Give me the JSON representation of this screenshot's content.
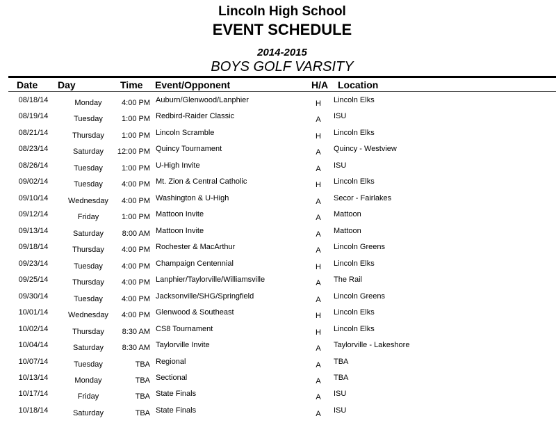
{
  "header": {
    "school": "Lincoln High School",
    "title": "EVENT SCHEDULE",
    "season": "2014-2015",
    "team": "BOYS GOLF VARSITY"
  },
  "columns": {
    "date": "Date",
    "day": "Day",
    "time": "Time",
    "event": "Event/Opponent",
    "ha": "H/A",
    "location": "Location"
  },
  "rows": [
    {
      "date": "08/18/14",
      "day": "Monday",
      "time": "4:00 PM",
      "event": "Auburn/Glenwood/Lanphier",
      "ha": "H",
      "location": "Lincoln Elks"
    },
    {
      "date": "08/19/14",
      "day": "Tuesday",
      "time": "1:00 PM",
      "event": "Redbird-Raider Classic",
      "ha": "A",
      "location": "ISU"
    },
    {
      "date": "08/21/14",
      "day": "Thursday",
      "time": "1:00 PM",
      "event": "Lincoln Scramble",
      "ha": "H",
      "location": "Lincoln Elks"
    },
    {
      "date": "08/23/14",
      "day": "Saturday",
      "time": "12:00 PM",
      "event": "Quincy Tournament",
      "ha": "A",
      "location": "Quincy - Westview"
    },
    {
      "date": "08/26/14",
      "day": "Tuesday",
      "time": "1:00 PM",
      "event": "U-High Invite",
      "ha": "A",
      "location": "ISU"
    },
    {
      "date": "09/02/14",
      "day": "Tuesday",
      "time": "4:00 PM",
      "event": "Mt. Zion & Central Catholic",
      "ha": "H",
      "location": "Lincoln Elks"
    },
    {
      "date": "09/10/14",
      "day": "Wednesday",
      "time": "4:00 PM",
      "event": "Washington & U-High",
      "ha": "A",
      "location": "Secor - Fairlakes"
    },
    {
      "date": "09/12/14",
      "day": "Friday",
      "time": "1:00 PM",
      "event": "Mattoon Invite",
      "ha": "A",
      "location": "Mattoon"
    },
    {
      "date": "09/13/14",
      "day": "Saturday",
      "time": "8:00 AM",
      "event": "Mattoon Invite",
      "ha": "A",
      "location": "Mattoon"
    },
    {
      "date": "09/18/14",
      "day": "Thursday",
      "time": "4:00 PM",
      "event": "Rochester & MacArthur",
      "ha": "A",
      "location": "Lincoln Greens"
    },
    {
      "date": "09/23/14",
      "day": "Tuesday",
      "time": "4:00 PM",
      "event": "Champaign Centennial",
      "ha": "H",
      "location": "Lincoln Elks"
    },
    {
      "date": "09/25/14",
      "day": "Thursday",
      "time": "4:00 PM",
      "event": "Lanphier/Taylorville/Williamsville",
      "ha": "A",
      "location": "The Rail"
    },
    {
      "date": "09/30/14",
      "day": "Tuesday",
      "time": "4:00 PM",
      "event": "Jacksonville/SHG/Springfield",
      "ha": "A",
      "location": "Lincoln Greens"
    },
    {
      "date": "10/01/14",
      "day": "Wednesday",
      "time": "4:00 PM",
      "event": "Glenwood & Southeast",
      "ha": "H",
      "location": "Lincoln Elks"
    },
    {
      "date": "10/02/14",
      "day": "Thursday",
      "time": "8:30 AM",
      "event": "CS8 Tournament",
      "ha": "H",
      "location": "Lincoln Elks"
    },
    {
      "date": "10/04/14",
      "day": "Saturday",
      "time": "8:30 AM",
      "event": "Taylorville Invite",
      "ha": "A",
      "location": "Taylorville - Lakeshore"
    },
    {
      "date": "10/07/14",
      "day": "Tuesday",
      "time": "TBA",
      "event": "Regional",
      "ha": "A",
      "location": "TBA"
    },
    {
      "date": "10/13/14",
      "day": "Monday",
      "time": "TBA",
      "event": "Sectional",
      "ha": "A",
      "location": "TBA"
    },
    {
      "date": "10/17/14",
      "day": "Friday",
      "time": "TBA",
      "event": "State Finals",
      "ha": "A",
      "location": "ISU"
    },
    {
      "date": "10/18/14",
      "day": "Saturday",
      "time": "TBA",
      "event": "State Finals",
      "ha": "A",
      "location": "ISU"
    }
  ]
}
